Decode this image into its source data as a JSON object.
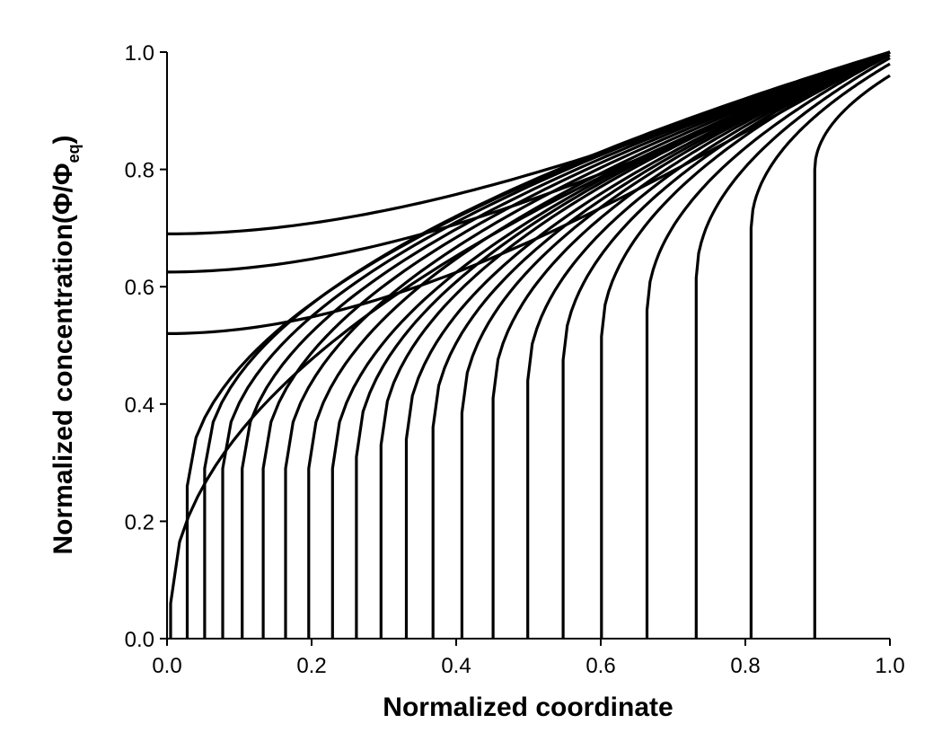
{
  "chart_data": {
    "type": "line",
    "xlabel": "Normalized coordinate",
    "ylabel_parts": {
      "main": "Normalized concentration(",
      "phi1": "Φ",
      "slash": "/",
      "phi2": "Φ",
      "sub": "eq",
      "close": ")"
    },
    "xlim": [
      0.0,
      1.0
    ],
    "ylim": [
      0.0,
      1.0
    ],
    "xticks": [
      "0.0",
      "0.2",
      "0.4",
      "0.6",
      "0.8",
      "1.0"
    ],
    "yticks": [
      "0.0",
      "0.2",
      "0.4",
      "0.6",
      "0.8",
      "1.0"
    ],
    "grid": false,
    "legend": "none",
    "line_color": "#000000",
    "upper_curves": [
      {
        "y0": 0.69,
        "y1": 1.0
      },
      {
        "y0": 0.625,
        "y1": 1.0
      },
      {
        "y0": 0.52,
        "y1": 1.0
      }
    ],
    "front_curves": [
      {
        "front": 0.005,
        "c_front": 0.06,
        "y_end": 1.0
      },
      {
        "front": 0.028,
        "c_front": 0.26,
        "y_end": 1.0
      },
      {
        "front": 0.052,
        "c_front": 0.29,
        "y_end": 1.0
      },
      {
        "front": 0.077,
        "c_front": 0.29,
        "y_end": 1.0
      },
      {
        "front": 0.104,
        "c_front": 0.29,
        "y_end": 1.0
      },
      {
        "front": 0.133,
        "c_front": 0.29,
        "y_end": 1.0
      },
      {
        "front": 0.164,
        "c_front": 0.29,
        "y_end": 1.0
      },
      {
        "front": 0.196,
        "c_front": 0.29,
        "y_end": 1.0
      },
      {
        "front": 0.229,
        "c_front": 0.29,
        "y_end": 1.0
      },
      {
        "front": 0.262,
        "c_front": 0.31,
        "y_end": 1.0
      },
      {
        "front": 0.296,
        "c_front": 0.33,
        "y_end": 1.0
      },
      {
        "front": 0.331,
        "c_front": 0.34,
        "y_end": 1.0
      },
      {
        "front": 0.368,
        "c_front": 0.36,
        "y_end": 1.0
      },
      {
        "front": 0.408,
        "c_front": 0.385,
        "y_end": 1.0
      },
      {
        "front": 0.451,
        "c_front": 0.41,
        "y_end": 1.0
      },
      {
        "front": 0.499,
        "c_front": 0.44,
        "y_end": 1.0
      },
      {
        "front": 0.548,
        "c_front": 0.475,
        "y_end": 1.0
      },
      {
        "front": 0.601,
        "c_front": 0.515,
        "y_end": 1.0
      },
      {
        "front": 0.664,
        "c_front": 0.56,
        "y_end": 0.995
      },
      {
        "front": 0.732,
        "c_front": 0.615,
        "y_end": 0.99
      },
      {
        "front": 0.808,
        "c_front": 0.7,
        "y_end": 0.98
      },
      {
        "front": 0.896,
        "c_front": 0.8,
        "y_end": 0.96
      }
    ]
  }
}
